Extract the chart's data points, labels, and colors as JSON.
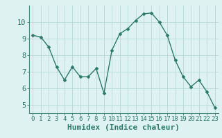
{
  "x": [
    0,
    1,
    2,
    3,
    4,
    5,
    6,
    7,
    8,
    9,
    10,
    11,
    12,
    13,
    14,
    15,
    16,
    17,
    18,
    19,
    20,
    21,
    22,
    23
  ],
  "y": [
    9.2,
    9.1,
    8.5,
    7.3,
    6.5,
    7.3,
    6.7,
    6.7,
    7.2,
    5.7,
    8.3,
    9.3,
    9.6,
    10.1,
    10.5,
    10.55,
    10.0,
    9.2,
    7.7,
    6.7,
    6.1,
    6.5,
    5.8,
    4.85
  ],
  "line_color": "#2a7a6a",
  "marker": "D",
  "marker_size": 2.5,
  "bg_color": "#dff2f2",
  "grid_color": "#b8d8d8",
  "xlabel": "Humidex (Indice chaleur)",
  "ylim": [
    4.5,
    11.0
  ],
  "xlim": [
    -0.5,
    23.5
  ],
  "yticks": [
    5,
    6,
    7,
    8,
    9,
    10
  ],
  "xticks": [
    0,
    1,
    2,
    3,
    4,
    5,
    6,
    7,
    8,
    9,
    10,
    11,
    12,
    13,
    14,
    15,
    16,
    17,
    18,
    19,
    20,
    21,
    22,
    23
  ],
  "tick_label_fontsize": 6.5,
  "xlabel_fontsize": 8,
  "axis_color": "#2a7a6a",
  "spine_color": "#4a8a80"
}
